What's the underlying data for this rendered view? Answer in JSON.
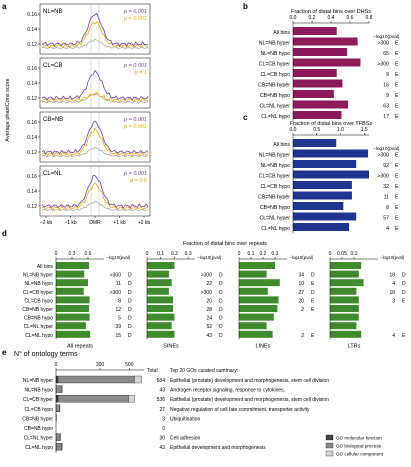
{
  "panel_letters": {
    "a": "a",
    "b": "b",
    "c": "c",
    "d": "d",
    "e": "e"
  },
  "panel_a": {
    "ylabel": "Average phastCons score",
    "xticks": [
      "−2 kb",
      "−1 kb",
      "DMR",
      "+1 kb",
      "+2 kb"
    ],
    "rows": [
      {
        "label": "NL=NB",
        "yticks": [
          "0.16",
          "0.14",
          "0.12"
        ],
        "pvals": [
          {
            "text": "p = 0.001",
            "color": "#6a3fb0"
          },
          {
            "text": "p = 0.001",
            "color": "#f0a500"
          }
        ]
      },
      {
        "label": "CL=CB",
        "yticks": [
          "0.16",
          "0.14",
          "0.12"
        ],
        "pvals": [
          {
            "text": "p = 0.001",
            "color": "#6a3fb0"
          },
          {
            "text": "p = 1",
            "color": "#f0a500"
          }
        ]
      },
      {
        "label": "CB=NB",
        "yticks": [
          "0.16",
          "0.14",
          "0.12"
        ],
        "pvals": [
          {
            "text": "p = 0.001",
            "color": "#6a3fb0"
          },
          {
            "text": "p = 0.001",
            "color": "#f0a500"
          }
        ]
      },
      {
        "label": "CL=NL",
        "yticks": [
          "0.16",
          "0.14",
          "0.12"
        ],
        "pvals": [
          {
            "text": "p = 0.001",
            "color": "#6a3fb0"
          },
          {
            "text": "p = 0.6",
            "color": "#f0a500"
          }
        ]
      }
    ],
    "colors": {
      "hyper": "#6a3fb0",
      "hypo": "#f0a500",
      "all": "#aaaaaa"
    }
  },
  "chart_data": [
    {
      "type": "bar",
      "title": "Fraction of distal bins over DHSs",
      "categories": [
        "All bins",
        "NL=NB hyper",
        "NL=NB hypo",
        "CL=CB hyper",
        "CL=CB hypo",
        "CB=NB hyper",
        "CB=NB hypo",
        "CL=NL hyper",
        "CL=NL hypo"
      ],
      "values": [
        0.46,
        0.68,
        0.57,
        0.71,
        0.46,
        0.52,
        0.43,
        0.58,
        0.51
      ],
      "xlim": [
        0,
        0.8
      ],
      "xticks": [
        "0.0",
        "0.2",
        "0.4",
        "0.6",
        "0.8"
      ],
      "stat_header": "−log10(pval)",
      "pvals": [
        "",
        ">300",
        "65",
        ">300",
        "9",
        "16",
        "9",
        "63",
        "17"
      ],
      "enrich": [
        "",
        "E",
        "E",
        "E",
        "E",
        "E",
        "E",
        "E",
        "E"
      ],
      "color": "#8c1a5a"
    },
    {
      "type": "bar",
      "title": "Fraction of distal bins over TFBSs",
      "categories": [
        "All bins",
        "NL=NB hyper",
        "NL=NB hypo",
        "CL=CB hyper",
        "CL=CB hypo",
        "CB=NB hyper",
        "CB=NB hypo",
        "CL=NL hyper",
        "CL=NL hypo"
      ],
      "values": [
        0.91,
        1.58,
        1.33,
        1.6,
        1.24,
        1.24,
        1.06,
        1.33,
        1.18
      ],
      "xlim": [
        0,
        1.6
      ],
      "xticks": [
        "0.0",
        "0.5",
        "1.0",
        "1.5"
      ],
      "stat_header": "−log10(pval)",
      "pvals": [
        "",
        ">300",
        "92",
        ">300",
        "32",
        "11",
        "8",
        "57",
        "4"
      ],
      "enrich": [
        "",
        "E",
        "E",
        "E",
        "E",
        "E",
        "E",
        "E",
        "E"
      ],
      "color": "#1f3590"
    },
    {
      "type": "bar",
      "title": "Fraction of distal bins over repeats",
      "categories": [
        "All bins",
        "NL=NB hyper",
        "NL=NB hypo",
        "CL=CB hyper",
        "CL=CB hypo",
        "CB=NB hyper",
        "CB=NB hypo",
        "CL=NL hyper",
        "CL=NL hypo"
      ],
      "color": "#3d8b2a",
      "stat_header": "−log10(pval)",
      "panels": [
        {
          "name": "All repeats",
          "xlim": [
            0,
            0.9
          ],
          "xticks": [
            "0",
            "0.3",
            "0.6"
          ],
          "values": [
            0.62,
            0.53,
            0.6,
            0.52,
            0.63,
            0.62,
            0.63,
            0.56,
            0.64
          ],
          "pvals": [
            "",
            ">300",
            "11",
            ">300",
            "8",
            "12",
            "5",
            "39",
            "15"
          ],
          "dirs": [
            "",
            "D",
            "D",
            "D",
            "D",
            "D",
            "D",
            "D",
            "D"
          ]
        },
        {
          "name": "SINEs",
          "xlim": [
            0,
            0.35
          ],
          "xticks": [
            "0",
            "0.1",
            "0.2",
            "0.3"
          ],
          "values": [
            0.2,
            0.16,
            0.18,
            0.16,
            0.19,
            0.19,
            0.2,
            0.18,
            0.2
          ],
          "pvals": [
            "",
            ">300",
            "22",
            ">300",
            "20",
            "28",
            "24",
            "52",
            "43"
          ],
          "dirs": [
            "",
            "D",
            "D",
            "D",
            "D",
            "D",
            "D",
            "D",
            "D"
          ]
        },
        {
          "name": "LINEs",
          "xlim": [
            0,
            0.4
          ],
          "xticks": [
            "0",
            "0.1",
            "0.2",
            "0.3"
          ],
          "values": [
            0.3,
            0.23,
            0.34,
            0.24,
            0.33,
            0.32,
            0.29,
            0.23,
            0.28
          ],
          "pvals": [
            "",
            "34",
            "10",
            "27",
            "20",
            "2",
            "",
            "",
            "2"
          ],
          "dirs": [
            "",
            "D",
            "E",
            "D",
            "E",
            "E",
            "",
            "",
            "E"
          ]
        },
        {
          "name": "LTRs",
          "xlim": [
            0,
            0.2
          ],
          "xticks": [
            "0",
            "0.05",
            "0.1"
          ],
          "values": [
            0.13,
            0.12,
            0.14,
            0.11,
            0.12,
            0.12,
            0.12,
            0.11,
            0.13
          ],
          "pvals": [
            "",
            "18",
            "4",
            "18",
            "3",
            "",
            "",
            "",
            "4"
          ],
          "dirs": [
            "",
            "D",
            "D",
            "D",
            "E",
            "",
            "",
            "",
            "E"
          ]
        }
      ]
    },
    {
      "type": "bar",
      "title": "N° of ontology terms",
      "categories": [
        "NL=NB hyper",
        "NL=NB hypo",
        "CL=CB hyper",
        "CL=CB hypo",
        "CB=NB hyper",
        "CB=NB hypo",
        "CL=NL hyper",
        "CL=NL hypo"
      ],
      "xlim": [
        0,
        600
      ],
      "xticks": [
        "0",
        "300",
        "500"
      ],
      "series": [
        {
          "name": "GO molecular function",
          "color": "#444444",
          "values": [
            14,
            0,
            14,
            0,
            0,
            0,
            1,
            1
          ]
        },
        {
          "name": "GO biological process",
          "color": "#8a8a8a",
          "values": [
            520,
            40,
            480,
            25,
            3,
            0,
            27,
            39
          ]
        },
        {
          "name": "GO cellular component",
          "color": "#d4d4d4",
          "values": [
            50,
            3,
            42,
            2,
            0,
            0,
            2,
            3
          ]
        }
      ],
      "totals": [
        "584",
        "43",
        "536",
        "27",
        "3",
        "0",
        "30",
        "43"
      ],
      "total_header": "Total",
      "summary_header": "Top 20 GOs curated summary:",
      "summaries": [
        "Epithelial (prostate) development and morphogenesis, stem cell division",
        "Androgen receptor signaling, response to cytokines,",
        "Epithelial (prostate) development and morphogenesis, stem cell division",
        "Negative regulation of cell fate commitment, transporter activity",
        "Ubiquitination",
        "",
        "Cell adhesion",
        "Epithelial development and morphogenesis"
      ]
    }
  ]
}
